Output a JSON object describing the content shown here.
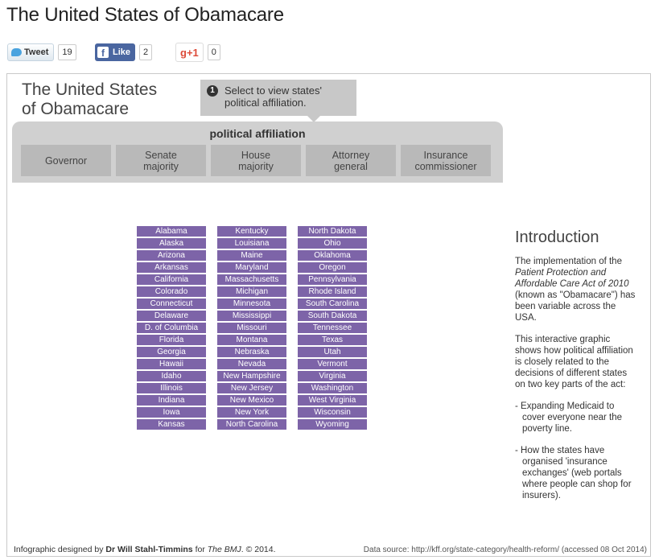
{
  "page": {
    "title": "The United States of Obamacare"
  },
  "social": {
    "tweet_label": "Tweet",
    "tweet_count": "19",
    "like_label": "Like",
    "like_count": "2",
    "gplus_label": "g+1",
    "gplus_count": "0"
  },
  "infographic": {
    "title_line1": "The United States",
    "title_line2": "of Obamacare",
    "tooltip_number": "1",
    "tooltip_line1": "Select to view states'",
    "tooltip_line2": "political affiliation.",
    "panel_label": "political affiliation",
    "tabs": [
      {
        "line1": "Governor",
        "line2": ""
      },
      {
        "line1": "Senate",
        "line2": "majority"
      },
      {
        "line1": "House",
        "line2": "majority"
      },
      {
        "line1": "Attorney",
        "line2": "general"
      },
      {
        "line1": "Insurance",
        "line2": "commissioner"
      }
    ],
    "states_col1": [
      "Alabama",
      "Alaska",
      "Arizona",
      "Arkansas",
      "California",
      "Colorado",
      "Connecticut",
      "Delaware",
      "D. of Columbia",
      "Florida",
      "Georgia",
      "Hawaii",
      "Idaho",
      "Illinois",
      "Indiana",
      "Iowa",
      "Kansas"
    ],
    "states_col2": [
      "Kentucky",
      "Louisiana",
      "Maine",
      "Maryland",
      "Massachusetts",
      "Michigan",
      "Minnesota",
      "Mississippi",
      "Missouri",
      "Montana",
      "Nebraska",
      "Nevada",
      "New Hampshire",
      "New Jersey",
      "New Mexico",
      "New York",
      "North Carolina"
    ],
    "states_col3": [
      "North Dakota",
      "Ohio",
      "Oklahoma",
      "Oregon",
      "Pennsylvania",
      "Rhode Island",
      "South Carolina",
      "South Dakota",
      "Tennessee",
      "Texas",
      "Utah",
      "Vermont",
      "Virginia",
      "Washington",
      "West Virginia",
      "Wisconsin",
      "Wyoming"
    ],
    "state_color": "#7d64a8",
    "intro": {
      "heading": "Introduction",
      "p1_a": "The implementation of the ",
      "p1_em": "Patient Protection and Affordable Care Act of 2010",
      "p1_b": " (known as \"Obamacare\") has been variable across the USA.",
      "p2": "This interactive graphic shows how political affiliation is closely related to the decisions of different states on two key parts of the act:",
      "bullet1": "- Expanding Medicaid to cover everyone near the poverty line.",
      "bullet2": "- How the states have organised 'insurance exchanges' (web portals where people can shop for insurers)."
    },
    "credit": {
      "prefix": "Infographic designed by ",
      "author": "Dr Will Stahl-Timmins",
      "middle": " for ",
      "journal": "The BMJ",
      "suffix": ". © 2014."
    },
    "source": "Data source: http://kff.org/state-category/health-reform/ (accessed 08 Oct 2014)"
  }
}
